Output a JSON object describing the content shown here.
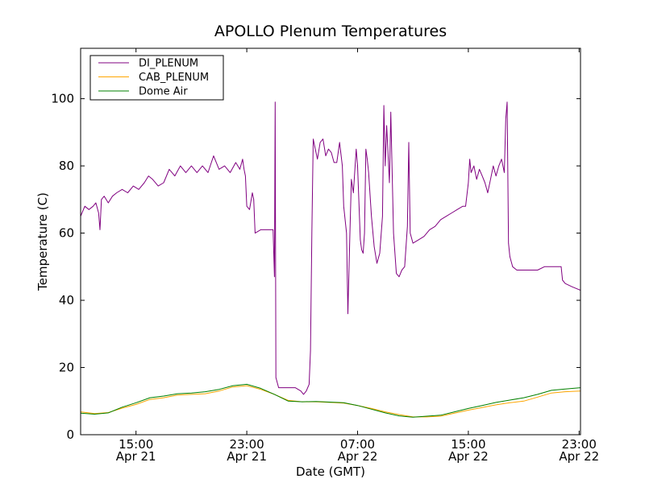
{
  "chart_data": {
    "type": "line",
    "title": "APOLLO Plenum Temperatures",
    "xlabel": "Date (GMT)",
    "ylabel": "Temperature (C)",
    "x_unit": "hours since Apr 21 00:00 GMT",
    "xlim": [
      11,
      47.1
    ],
    "ylim": [
      0,
      115
    ],
    "y_ticks": [
      0,
      20,
      40,
      60,
      80,
      100
    ],
    "x_ticks": [
      {
        "x": 15,
        "time": "15:00",
        "date": "Apr 21"
      },
      {
        "x": 23,
        "time": "23:00",
        "date": "Apr 21"
      },
      {
        "x": 31,
        "time": "07:00",
        "date": "Apr 22"
      },
      {
        "x": 39,
        "time": "15:00",
        "date": "Apr 22"
      },
      {
        "x": 47,
        "time": "23:00",
        "date": "Apr 22"
      }
    ],
    "legend_position": "top-left",
    "series": [
      {
        "name": "DI_PLENUM",
        "color": "#800080",
        "points": [
          [
            11.0,
            65
          ],
          [
            11.3,
            68
          ],
          [
            11.6,
            67
          ],
          [
            11.9,
            68
          ],
          [
            12.1,
            69
          ],
          [
            12.3,
            66
          ],
          [
            12.4,
            61
          ],
          [
            12.5,
            70
          ],
          [
            12.7,
            71
          ],
          [
            13.0,
            69
          ],
          [
            13.3,
            71
          ],
          [
            13.6,
            72
          ],
          [
            14.0,
            73
          ],
          [
            14.4,
            72
          ],
          [
            14.8,
            74
          ],
          [
            15.2,
            73
          ],
          [
            15.6,
            75
          ],
          [
            15.9,
            77
          ],
          [
            16.2,
            76
          ],
          [
            16.6,
            74
          ],
          [
            17.0,
            75
          ],
          [
            17.4,
            79
          ],
          [
            17.8,
            77
          ],
          [
            18.2,
            80
          ],
          [
            18.6,
            78
          ],
          [
            19.0,
            80
          ],
          [
            19.4,
            78
          ],
          [
            19.8,
            80
          ],
          [
            20.2,
            78
          ],
          [
            20.6,
            83
          ],
          [
            21.0,
            79
          ],
          [
            21.4,
            80
          ],
          [
            21.8,
            78
          ],
          [
            22.2,
            81
          ],
          [
            22.5,
            79
          ],
          [
            22.7,
            82
          ],
          [
            22.8,
            79
          ],
          [
            22.9,
            77
          ],
          [
            23.0,
            68
          ],
          [
            23.2,
            67
          ],
          [
            23.4,
            72
          ],
          [
            23.5,
            70
          ],
          [
            23.6,
            60
          ],
          [
            24.0,
            61
          ],
          [
            24.5,
            61
          ],
          [
            24.9,
            61
          ],
          [
            25.0,
            47
          ],
          [
            25.05,
            99
          ],
          [
            25.1,
            17
          ],
          [
            25.3,
            14
          ],
          [
            25.6,
            14
          ],
          [
            26.0,
            14
          ],
          [
            26.5,
            14
          ],
          [
            26.9,
            13
          ],
          [
            27.1,
            12
          ],
          [
            27.3,
            13
          ],
          [
            27.5,
            15
          ],
          [
            27.6,
            25
          ],
          [
            27.7,
            60
          ],
          [
            27.8,
            88
          ],
          [
            27.9,
            86
          ],
          [
            28.1,
            82
          ],
          [
            28.3,
            87
          ],
          [
            28.5,
            88
          ],
          [
            28.7,
            83
          ],
          [
            28.9,
            85
          ],
          [
            29.1,
            84
          ],
          [
            29.3,
            81
          ],
          [
            29.5,
            81
          ],
          [
            29.7,
            87
          ],
          [
            29.9,
            80
          ],
          [
            30.0,
            68
          ],
          [
            30.2,
            60
          ],
          [
            30.3,
            36
          ],
          [
            30.45,
            60
          ],
          [
            30.55,
            76
          ],
          [
            30.7,
            72
          ],
          [
            30.9,
            85
          ],
          [
            31.0,
            80
          ],
          [
            31.2,
            58
          ],
          [
            31.3,
            55
          ],
          [
            31.4,
            54
          ],
          [
            31.5,
            60
          ],
          [
            31.6,
            85
          ],
          [
            31.7,
            82
          ],
          [
            31.8,
            78
          ],
          [
            32.0,
            65
          ],
          [
            32.2,
            56
          ],
          [
            32.4,
            51
          ],
          [
            32.6,
            54
          ],
          [
            32.8,
            65
          ],
          [
            32.9,
            98
          ],
          [
            33.0,
            80
          ],
          [
            33.1,
            92
          ],
          [
            33.3,
            75
          ],
          [
            33.4,
            96
          ],
          [
            33.6,
            60
          ],
          [
            33.8,
            48
          ],
          [
            34.0,
            47
          ],
          [
            34.2,
            49
          ],
          [
            34.4,
            50
          ],
          [
            34.6,
            62
          ],
          [
            34.7,
            87
          ],
          [
            34.8,
            60
          ],
          [
            35.0,
            57
          ],
          [
            35.4,
            58
          ],
          [
            35.8,
            59
          ],
          [
            36.2,
            61
          ],
          [
            36.6,
            62
          ],
          [
            37.0,
            64
          ],
          [
            37.4,
            65
          ],
          [
            37.8,
            66
          ],
          [
            38.2,
            67
          ],
          [
            38.6,
            68
          ],
          [
            38.8,
            68
          ],
          [
            39.0,
            75
          ],
          [
            39.1,
            82
          ],
          [
            39.2,
            78
          ],
          [
            39.4,
            80
          ],
          [
            39.6,
            76
          ],
          [
            39.8,
            79
          ],
          [
            40.0,
            77
          ],
          [
            40.2,
            75
          ],
          [
            40.4,
            72
          ],
          [
            40.6,
            76
          ],
          [
            40.8,
            80
          ],
          [
            41.0,
            77
          ],
          [
            41.2,
            80
          ],
          [
            41.4,
            82
          ],
          [
            41.6,
            78
          ],
          [
            41.7,
            94
          ],
          [
            41.8,
            99
          ],
          [
            41.9,
            57
          ],
          [
            42.0,
            53
          ],
          [
            42.2,
            50
          ],
          [
            42.5,
            49
          ],
          [
            43.0,
            49
          ],
          [
            43.5,
            49
          ],
          [
            44.0,
            49
          ],
          [
            44.5,
            50
          ],
          [
            45.0,
            50
          ],
          [
            45.5,
            50
          ],
          [
            45.7,
            50
          ],
          [
            45.8,
            46
          ],
          [
            46.0,
            45
          ],
          [
            46.5,
            44
          ],
          [
            47.1,
            43
          ]
        ]
      },
      {
        "name": "CAB_PLENUM",
        "color": "#ffa500",
        "points": [
          [
            11.0,
            6.8
          ],
          [
            12.0,
            6.3
          ],
          [
            13.0,
            6.6
          ],
          [
            14.0,
            7.9
          ],
          [
            15.0,
            9.0
          ],
          [
            16.0,
            10.5
          ],
          [
            17.0,
            11.0
          ],
          [
            18.0,
            11.8
          ],
          [
            19.0,
            12.0
          ],
          [
            20.0,
            12.2
          ],
          [
            21.0,
            13.0
          ],
          [
            22.0,
            14.2
          ],
          [
            23.0,
            14.6
          ],
          [
            24.0,
            13.5
          ],
          [
            25.0,
            12.0
          ],
          [
            26.0,
            10.2
          ],
          [
            27.0,
            9.8
          ],
          [
            28.0,
            9.8
          ],
          [
            29.0,
            9.6
          ],
          [
            30.0,
            9.4
          ],
          [
            31.0,
            8.7
          ],
          [
            32.0,
            7.8
          ],
          [
            33.0,
            6.8
          ],
          [
            34.0,
            6.0
          ],
          [
            35.0,
            5.3
          ],
          [
            36.0,
            5.3
          ],
          [
            37.0,
            5.5
          ],
          [
            38.0,
            6.4
          ],
          [
            39.0,
            7.3
          ],
          [
            40.0,
            8.1
          ],
          [
            41.0,
            8.9
          ],
          [
            42.0,
            9.5
          ],
          [
            43.0,
            10.0
          ],
          [
            44.0,
            11.2
          ],
          [
            45.0,
            12.4
          ],
          [
            46.0,
            12.8
          ],
          [
            47.1,
            13.0
          ]
        ]
      },
      {
        "name": "Dome Air",
        "color": "#008000",
        "points": [
          [
            11.0,
            6.4
          ],
          [
            12.0,
            6.1
          ],
          [
            13.0,
            6.5
          ],
          [
            14.0,
            8.2
          ],
          [
            15.0,
            9.5
          ],
          [
            16.0,
            11.0
          ],
          [
            17.0,
            11.5
          ],
          [
            18.0,
            12.2
          ],
          [
            19.0,
            12.4
          ],
          [
            20.0,
            12.8
          ],
          [
            21.0,
            13.5
          ],
          [
            22.0,
            14.6
          ],
          [
            23.0,
            15.0
          ],
          [
            24.0,
            13.8
          ],
          [
            25.0,
            12.0
          ],
          [
            26.0,
            10.0
          ],
          [
            27.0,
            9.8
          ],
          [
            28.0,
            9.9
          ],
          [
            29.0,
            9.7
          ],
          [
            30.0,
            9.5
          ],
          [
            31.0,
            8.7
          ],
          [
            32.0,
            7.6
          ],
          [
            33.0,
            6.5
          ],
          [
            34.0,
            5.6
          ],
          [
            35.0,
            5.2
          ],
          [
            36.0,
            5.5
          ],
          [
            37.0,
            5.8
          ],
          [
            38.0,
            6.8
          ],
          [
            39.0,
            7.8
          ],
          [
            40.0,
            8.7
          ],
          [
            41.0,
            9.6
          ],
          [
            42.0,
            10.3
          ],
          [
            43.0,
            11.0
          ],
          [
            44.0,
            12.0
          ],
          [
            45.0,
            13.2
          ],
          [
            46.0,
            13.6
          ],
          [
            47.1,
            14.0
          ]
        ]
      }
    ]
  }
}
